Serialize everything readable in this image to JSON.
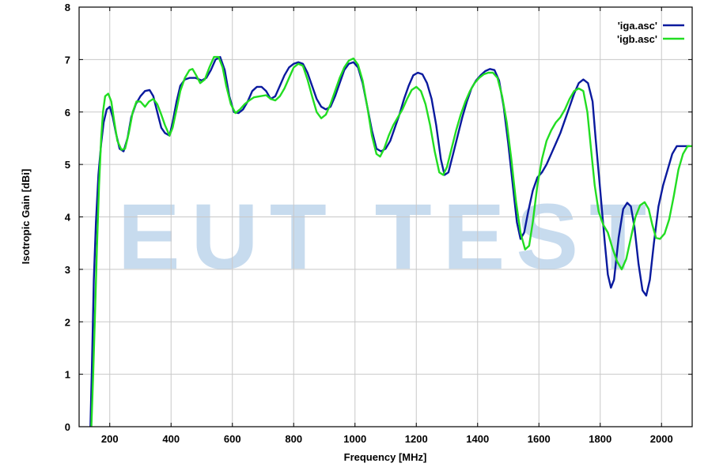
{
  "chart_data": {
    "type": "line",
    "xlabel": "Frequency [MHz]",
    "ylabel": "Isotropic Gain [dBi]",
    "xlim": [
      100,
      2100
    ],
    "ylim": [
      0,
      8
    ],
    "xticks": [
      200,
      400,
      600,
      800,
      1000,
      1200,
      1400,
      1600,
      1800,
      2000
    ],
    "yticks": [
      0,
      1,
      2,
      3,
      4,
      5,
      6,
      7,
      8
    ],
    "grid": true,
    "legend_position": "top-right",
    "watermark": "EUT TEST",
    "series": [
      {
        "name": "'iga.asc'",
        "color": "#0a1a9e",
        "points": [
          [
            137,
            0
          ],
          [
            142,
            1.2
          ],
          [
            148,
            2.8
          ],
          [
            155,
            3.9
          ],
          [
            163,
            4.8
          ],
          [
            172,
            5.4
          ],
          [
            180,
            5.8
          ],
          [
            190,
            6.05
          ],
          [
            200,
            6.1
          ],
          [
            210,
            5.9
          ],
          [
            220,
            5.6
          ],
          [
            232,
            5.3
          ],
          [
            245,
            5.25
          ],
          [
            258,
            5.5
          ],
          [
            270,
            5.9
          ],
          [
            285,
            6.15
          ],
          [
            300,
            6.3
          ],
          [
            315,
            6.4
          ],
          [
            330,
            6.42
          ],
          [
            342,
            6.3
          ],
          [
            355,
            6.0
          ],
          [
            368,
            5.7
          ],
          [
            380,
            5.6
          ],
          [
            395,
            5.55
          ],
          [
            405,
            5.8
          ],
          [
            418,
            6.2
          ],
          [
            430,
            6.5
          ],
          [
            445,
            6.62
          ],
          [
            460,
            6.65
          ],
          [
            480,
            6.65
          ],
          [
            500,
            6.6
          ],
          [
            515,
            6.65
          ],
          [
            530,
            6.8
          ],
          [
            545,
            7.0
          ],
          [
            560,
            7.05
          ],
          [
            575,
            6.8
          ],
          [
            590,
            6.3
          ],
          [
            605,
            6.0
          ],
          [
            620,
            5.98
          ],
          [
            635,
            6.05
          ],
          [
            650,
            6.2
          ],
          [
            665,
            6.4
          ],
          [
            680,
            6.48
          ],
          [
            695,
            6.48
          ],
          [
            710,
            6.4
          ],
          [
            725,
            6.25
          ],
          [
            740,
            6.3
          ],
          [
            755,
            6.5
          ],
          [
            770,
            6.7
          ],
          [
            785,
            6.85
          ],
          [
            800,
            6.92
          ],
          [
            815,
            6.95
          ],
          [
            830,
            6.92
          ],
          [
            845,
            6.75
          ],
          [
            860,
            6.5
          ],
          [
            875,
            6.25
          ],
          [
            890,
            6.1
          ],
          [
            905,
            6.05
          ],
          [
            920,
            6.1
          ],
          [
            935,
            6.3
          ],
          [
            950,
            6.55
          ],
          [
            965,
            6.8
          ],
          [
            980,
            6.92
          ],
          [
            995,
            6.95
          ],
          [
            1010,
            6.85
          ],
          [
            1025,
            6.55
          ],
          [
            1040,
            6.1
          ],
          [
            1055,
            5.65
          ],
          [
            1070,
            5.3
          ],
          [
            1085,
            5.25
          ],
          [
            1100,
            5.3
          ],
          [
            1115,
            5.45
          ],
          [
            1130,
            5.7
          ],
          [
            1145,
            5.95
          ],
          [
            1160,
            6.25
          ],
          [
            1175,
            6.5
          ],
          [
            1190,
            6.7
          ],
          [
            1205,
            6.75
          ],
          [
            1220,
            6.72
          ],
          [
            1235,
            6.55
          ],
          [
            1250,
            6.25
          ],
          [
            1265,
            5.75
          ],
          [
            1280,
            5.1
          ],
          [
            1292,
            4.8
          ],
          [
            1305,
            4.85
          ],
          [
            1320,
            5.2
          ],
          [
            1335,
            5.55
          ],
          [
            1350,
            5.9
          ],
          [
            1365,
            6.2
          ],
          [
            1380,
            6.45
          ],
          [
            1395,
            6.6
          ],
          [
            1410,
            6.7
          ],
          [
            1425,
            6.78
          ],
          [
            1440,
            6.82
          ],
          [
            1455,
            6.8
          ],
          [
            1470,
            6.6
          ],
          [
            1485,
            6.1
          ],
          [
            1500,
            5.4
          ],
          [
            1515,
            4.6
          ],
          [
            1528,
            3.9
          ],
          [
            1540,
            3.58
          ],
          [
            1552,
            3.7
          ],
          [
            1565,
            4.1
          ],
          [
            1580,
            4.5
          ],
          [
            1595,
            4.75
          ],
          [
            1610,
            4.85
          ],
          [
            1625,
            5.0
          ],
          [
            1640,
            5.2
          ],
          [
            1655,
            5.4
          ],
          [
            1670,
            5.6
          ],
          [
            1685,
            5.85
          ],
          [
            1700,
            6.1
          ],
          [
            1715,
            6.35
          ],
          [
            1730,
            6.55
          ],
          [
            1745,
            6.62
          ],
          [
            1760,
            6.55
          ],
          [
            1775,
            6.2
          ],
          [
            1785,
            5.5
          ],
          [
            1800,
            4.5
          ],
          [
            1815,
            3.5
          ],
          [
            1825,
            2.9
          ],
          [
            1835,
            2.65
          ],
          [
            1845,
            2.8
          ],
          [
            1860,
            3.6
          ],
          [
            1875,
            4.15
          ],
          [
            1888,
            4.27
          ],
          [
            1900,
            4.2
          ],
          [
            1912,
            3.8
          ],
          [
            1925,
            3.1
          ],
          [
            1938,
            2.6
          ],
          [
            1950,
            2.5
          ],
          [
            1962,
            2.8
          ],
          [
            1975,
            3.5
          ],
          [
            1990,
            4.2
          ],
          [
            2005,
            4.6
          ],
          [
            2020,
            4.9
          ],
          [
            2035,
            5.2
          ],
          [
            2050,
            5.35
          ],
          [
            2065,
            5.35
          ],
          [
            2080,
            5.35
          ],
          [
            2090,
            5.35
          ]
        ]
      },
      {
        "name": "'igb.asc'",
        "color": "#22dd22",
        "points": [
          [
            140,
            0
          ],
          [
            146,
            1.0
          ],
          [
            152,
            2.2
          ],
          [
            158,
            3.4
          ],
          [
            165,
            4.6
          ],
          [
            172,
            5.5
          ],
          [
            178,
            6.0
          ],
          [
            185,
            6.3
          ],
          [
            195,
            6.35
          ],
          [
            205,
            6.2
          ],
          [
            215,
            5.8
          ],
          [
            225,
            5.45
          ],
          [
            238,
            5.28
          ],
          [
            250,
            5.3
          ],
          [
            262,
            5.6
          ],
          [
            275,
            6.0
          ],
          [
            287,
            6.2
          ],
          [
            300,
            6.2
          ],
          [
            315,
            6.1
          ],
          [
            328,
            6.2
          ],
          [
            342,
            6.25
          ],
          [
            355,
            6.15
          ],
          [
            368,
            5.95
          ],
          [
            380,
            5.75
          ],
          [
            395,
            5.55
          ],
          [
            405,
            5.7
          ],
          [
            418,
            6.05
          ],
          [
            430,
            6.4
          ],
          [
            445,
            6.65
          ],
          [
            460,
            6.8
          ],
          [
            470,
            6.82
          ],
          [
            482,
            6.7
          ],
          [
            495,
            6.55
          ],
          [
            510,
            6.62
          ],
          [
            525,
            6.85
          ],
          [
            540,
            7.05
          ],
          [
            555,
            7.05
          ],
          [
            568,
            6.85
          ],
          [
            580,
            6.5
          ],
          [
            595,
            6.15
          ],
          [
            610,
            5.98
          ],
          [
            625,
            6.05
          ],
          [
            640,
            6.15
          ],
          [
            655,
            6.22
          ],
          [
            670,
            6.28
          ],
          [
            690,
            6.3
          ],
          [
            710,
            6.32
          ],
          [
            725,
            6.25
          ],
          [
            740,
            6.22
          ],
          [
            755,
            6.3
          ],
          [
            770,
            6.45
          ],
          [
            785,
            6.65
          ],
          [
            800,
            6.85
          ],
          [
            815,
            6.92
          ],
          [
            830,
            6.88
          ],
          [
            845,
            6.62
          ],
          [
            860,
            6.3
          ],
          [
            875,
            6.0
          ],
          [
            890,
            5.88
          ],
          [
            905,
            5.95
          ],
          [
            920,
            6.15
          ],
          [
            935,
            6.4
          ],
          [
            950,
            6.65
          ],
          [
            965,
            6.85
          ],
          [
            980,
            6.98
          ],
          [
            995,
            7.02
          ],
          [
            1010,
            6.9
          ],
          [
            1025,
            6.6
          ],
          [
            1040,
            6.1
          ],
          [
            1055,
            5.55
          ],
          [
            1070,
            5.2
          ],
          [
            1082,
            5.15
          ],
          [
            1095,
            5.3
          ],
          [
            1110,
            5.55
          ],
          [
            1125,
            5.75
          ],
          [
            1140,
            5.9
          ],
          [
            1155,
            6.05
          ],
          [
            1170,
            6.25
          ],
          [
            1185,
            6.42
          ],
          [
            1200,
            6.48
          ],
          [
            1215,
            6.4
          ],
          [
            1230,
            6.15
          ],
          [
            1245,
            5.75
          ],
          [
            1260,
            5.25
          ],
          [
            1275,
            4.85
          ],
          [
            1288,
            4.8
          ],
          [
            1300,
            4.95
          ],
          [
            1315,
            5.3
          ],
          [
            1330,
            5.65
          ],
          [
            1345,
            5.95
          ],
          [
            1360,
            6.2
          ],
          [
            1375,
            6.4
          ],
          [
            1390,
            6.55
          ],
          [
            1405,
            6.65
          ],
          [
            1420,
            6.72
          ],
          [
            1435,
            6.75
          ],
          [
            1450,
            6.75
          ],
          [
            1465,
            6.65
          ],
          [
            1480,
            6.3
          ],
          [
            1495,
            5.8
          ],
          [
            1510,
            5.1
          ],
          [
            1525,
            4.3
          ],
          [
            1540,
            3.7
          ],
          [
            1555,
            3.38
          ],
          [
            1568,
            3.45
          ],
          [
            1580,
            3.9
          ],
          [
            1595,
            4.6
          ],
          [
            1610,
            5.1
          ],
          [
            1625,
            5.45
          ],
          [
            1640,
            5.65
          ],
          [
            1655,
            5.8
          ],
          [
            1670,
            5.9
          ],
          [
            1685,
            6.05
          ],
          [
            1700,
            6.25
          ],
          [
            1715,
            6.4
          ],
          [
            1730,
            6.45
          ],
          [
            1745,
            6.4
          ],
          [
            1758,
            6.0
          ],
          [
            1770,
            5.3
          ],
          [
            1782,
            4.6
          ],
          [
            1795,
            4.1
          ],
          [
            1810,
            3.85
          ],
          [
            1825,
            3.7
          ],
          [
            1840,
            3.4
          ],
          [
            1855,
            3.15
          ],
          [
            1870,
            3.0
          ],
          [
            1885,
            3.2
          ],
          [
            1900,
            3.6
          ],
          [
            1915,
            4.0
          ],
          [
            1930,
            4.22
          ],
          [
            1945,
            4.28
          ],
          [
            1958,
            4.15
          ],
          [
            1970,
            3.85
          ],
          [
            1982,
            3.6
          ],
          [
            1995,
            3.58
          ],
          [
            2010,
            3.68
          ],
          [
            2025,
            3.95
          ],
          [
            2040,
            4.4
          ],
          [
            2055,
            4.9
          ],
          [
            2070,
            5.2
          ],
          [
            2085,
            5.35
          ],
          [
            2098,
            5.35
          ]
        ]
      }
    ]
  }
}
